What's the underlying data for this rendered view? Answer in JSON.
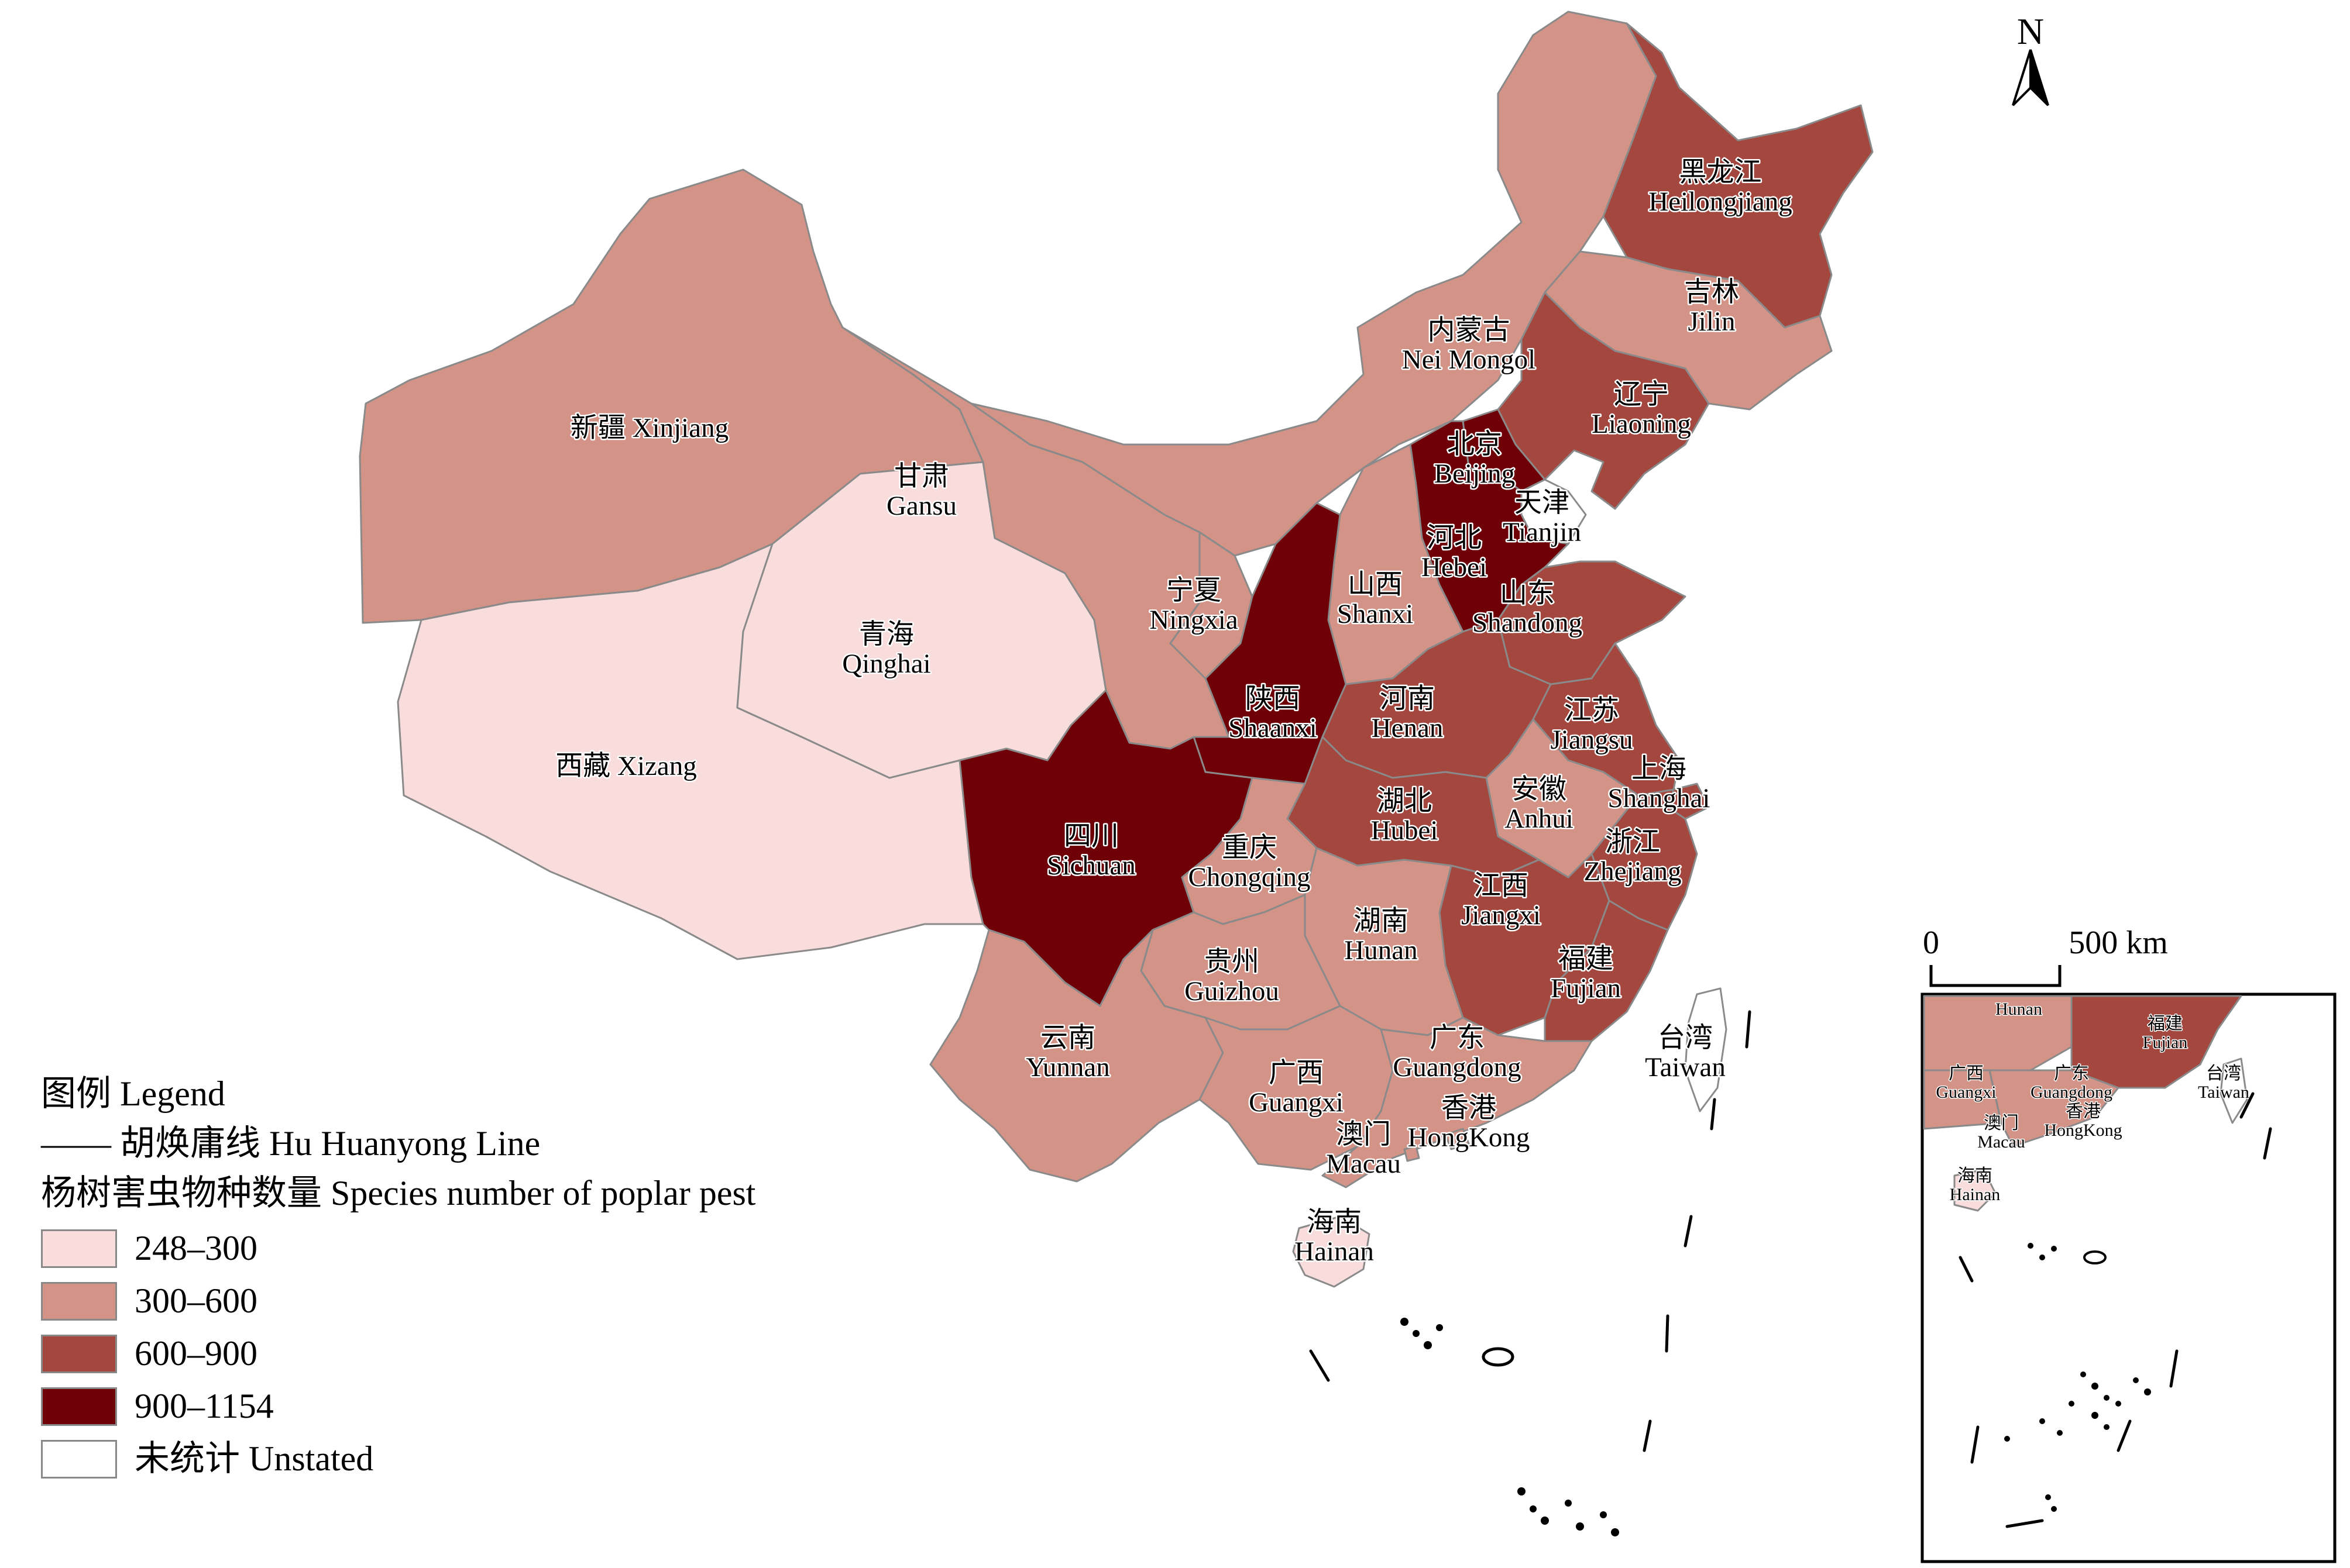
{
  "map": {
    "north_label": "N",
    "scale_bar": {
      "start": "0",
      "end": "500 km"
    },
    "class_colors": {
      "c1": "#f9dcdc",
      "c2": "#d39387",
      "c3": "#a3473f",
      "c4": "#6f0008",
      "unstated": "#ffffff"
    },
    "regions": [
      {
        "id": "xinjiang",
        "zh": "新疆",
        "en": "Xinjiang",
        "class": "c2"
      },
      {
        "id": "xizang",
        "zh": "西藏",
        "en": "Xizang",
        "class": "c1"
      },
      {
        "id": "qinghai",
        "zh": "青海",
        "en": "Qinghai",
        "class": "c1"
      },
      {
        "id": "gansu",
        "zh": "甘肃",
        "en": "Gansu",
        "class": "c2"
      },
      {
        "id": "neimongol",
        "zh": "内蒙古",
        "en": "Nei Mongol",
        "class": "c2"
      },
      {
        "id": "heilongjiang",
        "zh": "黑龙江",
        "en": "Heilongjiang",
        "class": "c3"
      },
      {
        "id": "jilin",
        "zh": "吉林",
        "en": "Jilin",
        "class": "c2"
      },
      {
        "id": "liaoning",
        "zh": "辽宁",
        "en": "Liaoning",
        "class": "c3"
      },
      {
        "id": "beijing",
        "zh": "北京",
        "en": "Beijing",
        "class": "c4"
      },
      {
        "id": "tianjin",
        "zh": "天津",
        "en": "Tianjin",
        "class": "unstated"
      },
      {
        "id": "hebei",
        "zh": "河北",
        "en": "Hebei",
        "class": "c4"
      },
      {
        "id": "shanxi",
        "zh": "山西",
        "en": "Shanxi",
        "class": "c2"
      },
      {
        "id": "shandong",
        "zh": "山东",
        "en": "Shandong",
        "class": "c3"
      },
      {
        "id": "ningxia",
        "zh": "宁夏",
        "en": "Ningxia",
        "class": "c2"
      },
      {
        "id": "shaanxi",
        "zh": "陕西",
        "en": "Shaanxi",
        "class": "c4"
      },
      {
        "id": "henan",
        "zh": "河南",
        "en": "Henan",
        "class": "c3"
      },
      {
        "id": "jiangsu",
        "zh": "江苏",
        "en": "Jiangsu",
        "class": "c3"
      },
      {
        "id": "anhui",
        "zh": "安徽",
        "en": "Anhui",
        "class": "c2"
      },
      {
        "id": "shanghai",
        "zh": "上海",
        "en": "Shanghai",
        "class": "c3"
      },
      {
        "id": "hubei",
        "zh": "湖北",
        "en": "Hubei",
        "class": "c3"
      },
      {
        "id": "sichuan",
        "zh": "四川",
        "en": "Sichuan",
        "class": "c4"
      },
      {
        "id": "chongqing",
        "zh": "重庆",
        "en": "Chongqing",
        "class": "c2"
      },
      {
        "id": "zhejiang",
        "zh": "浙江",
        "en": "Zhejiang",
        "class": "c3"
      },
      {
        "id": "jiangxi",
        "zh": "江西",
        "en": "Jiangxi",
        "class": "c3"
      },
      {
        "id": "hunan",
        "zh": "湖南",
        "en": "Hunan",
        "class": "c2"
      },
      {
        "id": "guizhou",
        "zh": "贵州",
        "en": "Guizhou",
        "class": "c2"
      },
      {
        "id": "fujian",
        "zh": "福建",
        "en": "Fujian",
        "class": "c3"
      },
      {
        "id": "yunnan",
        "zh": "云南",
        "en": "Yunnan",
        "class": "c2"
      },
      {
        "id": "guangxi",
        "zh": "广西",
        "en": "Guangxi",
        "class": "c2"
      },
      {
        "id": "guangdong",
        "zh": "广东",
        "en": "Guangdong",
        "class": "c2"
      },
      {
        "id": "hongkong",
        "zh": "香港",
        "en": "HongKong",
        "class": "c2"
      },
      {
        "id": "macau",
        "zh": "澳门",
        "en": "Macau",
        "class": "c2"
      },
      {
        "id": "taiwan",
        "zh": "台湾",
        "en": "Taiwan",
        "class": "unstated"
      },
      {
        "id": "hainan",
        "zh": "海南",
        "en": "Hainan",
        "class": "c1"
      }
    ]
  },
  "legend": {
    "title": "图例 Legend",
    "line_label": "—— 胡焕庸线 Hu Huanyong Line",
    "subtitle": "杨树害虫物种数量 Species number of poplar pest",
    "classes": [
      {
        "label": "248–300",
        "color": "#f9dcdc"
      },
      {
        "label": "300–600",
        "color": "#d39387"
      },
      {
        "label": "600–900",
        "color": "#a3473f"
      },
      {
        "label": "900–1154",
        "color": "#6f0008"
      },
      {
        "label": "未统计 Unstated",
        "color": "#ffffff"
      }
    ]
  }
}
